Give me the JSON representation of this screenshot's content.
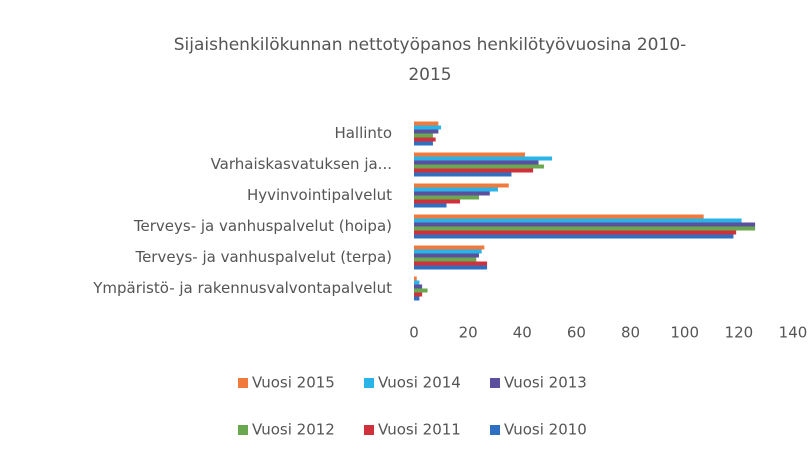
{
  "chart_data": {
    "type": "hbar",
    "title": "Sijaishenkilökunnan  nettotyöpanos henkilötyövuosina 2010-",
    "title_line2": "2015",
    "categories": [
      "Hallinto",
      "Varhaiskasvatuksen ja...",
      "Hyvinvointipalvelut",
      "Terveys- ja vanhuspalvelut (hoipa)",
      "Terveys- ja vanhuspalvelut (terpa)",
      "Ympäristö- ja rakennusvalvontapalvelut"
    ],
    "series": [
      {
        "name": "Vuosi 2015",
        "color": "#f07a3c",
        "values": [
          9,
          41,
          35,
          107,
          26,
          1
        ]
      },
      {
        "name": "Vuosi 2014",
        "color": "#2ab3e6",
        "values": [
          10,
          51,
          31,
          121,
          25,
          2
        ]
      },
      {
        "name": "Vuosi 2013",
        "color": "#5b4f9e",
        "values": [
          9,
          46,
          28,
          126,
          24,
          3
        ]
      },
      {
        "name": "Vuosi 2012",
        "color": "#6aa84f",
        "values": [
          7,
          48,
          24,
          126,
          23,
          5
        ]
      },
      {
        "name": "Vuosi 2011",
        "color": "#d0303b",
        "values": [
          8,
          44,
          17,
          119,
          27,
          3
        ]
      },
      {
        "name": "Vuosi 2010",
        "color": "#2f6fc1",
        "values": [
          7,
          36,
          12,
          118,
          27,
          2
        ]
      }
    ],
    "xlim": [
      0,
      140
    ],
    "xticks": [
      0,
      20,
      40,
      60,
      80,
      100,
      120,
      140
    ],
    "grid": false
  }
}
